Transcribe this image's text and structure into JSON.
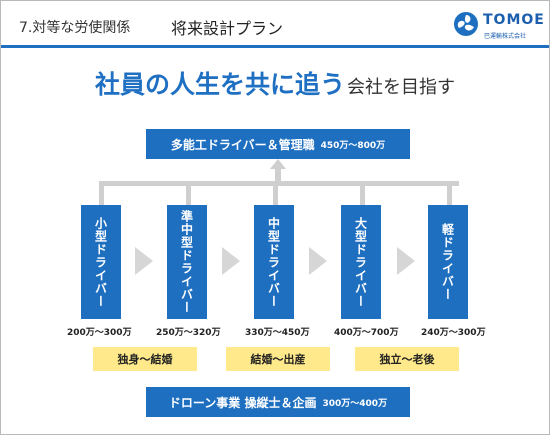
{
  "header": {
    "section": "7.対等な労使関係",
    "title": "将来設計プラン",
    "logo_name": "TOMOE",
    "logo_sub": "巴運輸株式会社"
  },
  "headline": {
    "main": "社員の人生を共に追う",
    "sub": "会社を目指す"
  },
  "top_box": {
    "label": "多能工ドライバー＆管理職",
    "range": "450万～800万"
  },
  "columns": [
    {
      "label": "小型ドライバー",
      "salary": "200万～300万"
    },
    {
      "label": "準中型ドライバー",
      "salary": "250万～320万"
    },
    {
      "label": "中型ドライバー",
      "salary": "330万～450万"
    },
    {
      "label": "大型ドライバー",
      "salary": "400万～700万"
    },
    {
      "label": "軽ドライバー",
      "salary": "240万～300万"
    }
  ],
  "stages": [
    "独身～結婚",
    "結婚～出産",
    "独立～老後"
  ],
  "bottom_box": {
    "label": "ドローン事業 操縦士＆企画",
    "range": "300万～400万"
  },
  "colors": {
    "brand_blue": "#1e6fc0",
    "stage_yellow": "#ffe98a",
    "connector_gray": "#cfcfcf"
  }
}
